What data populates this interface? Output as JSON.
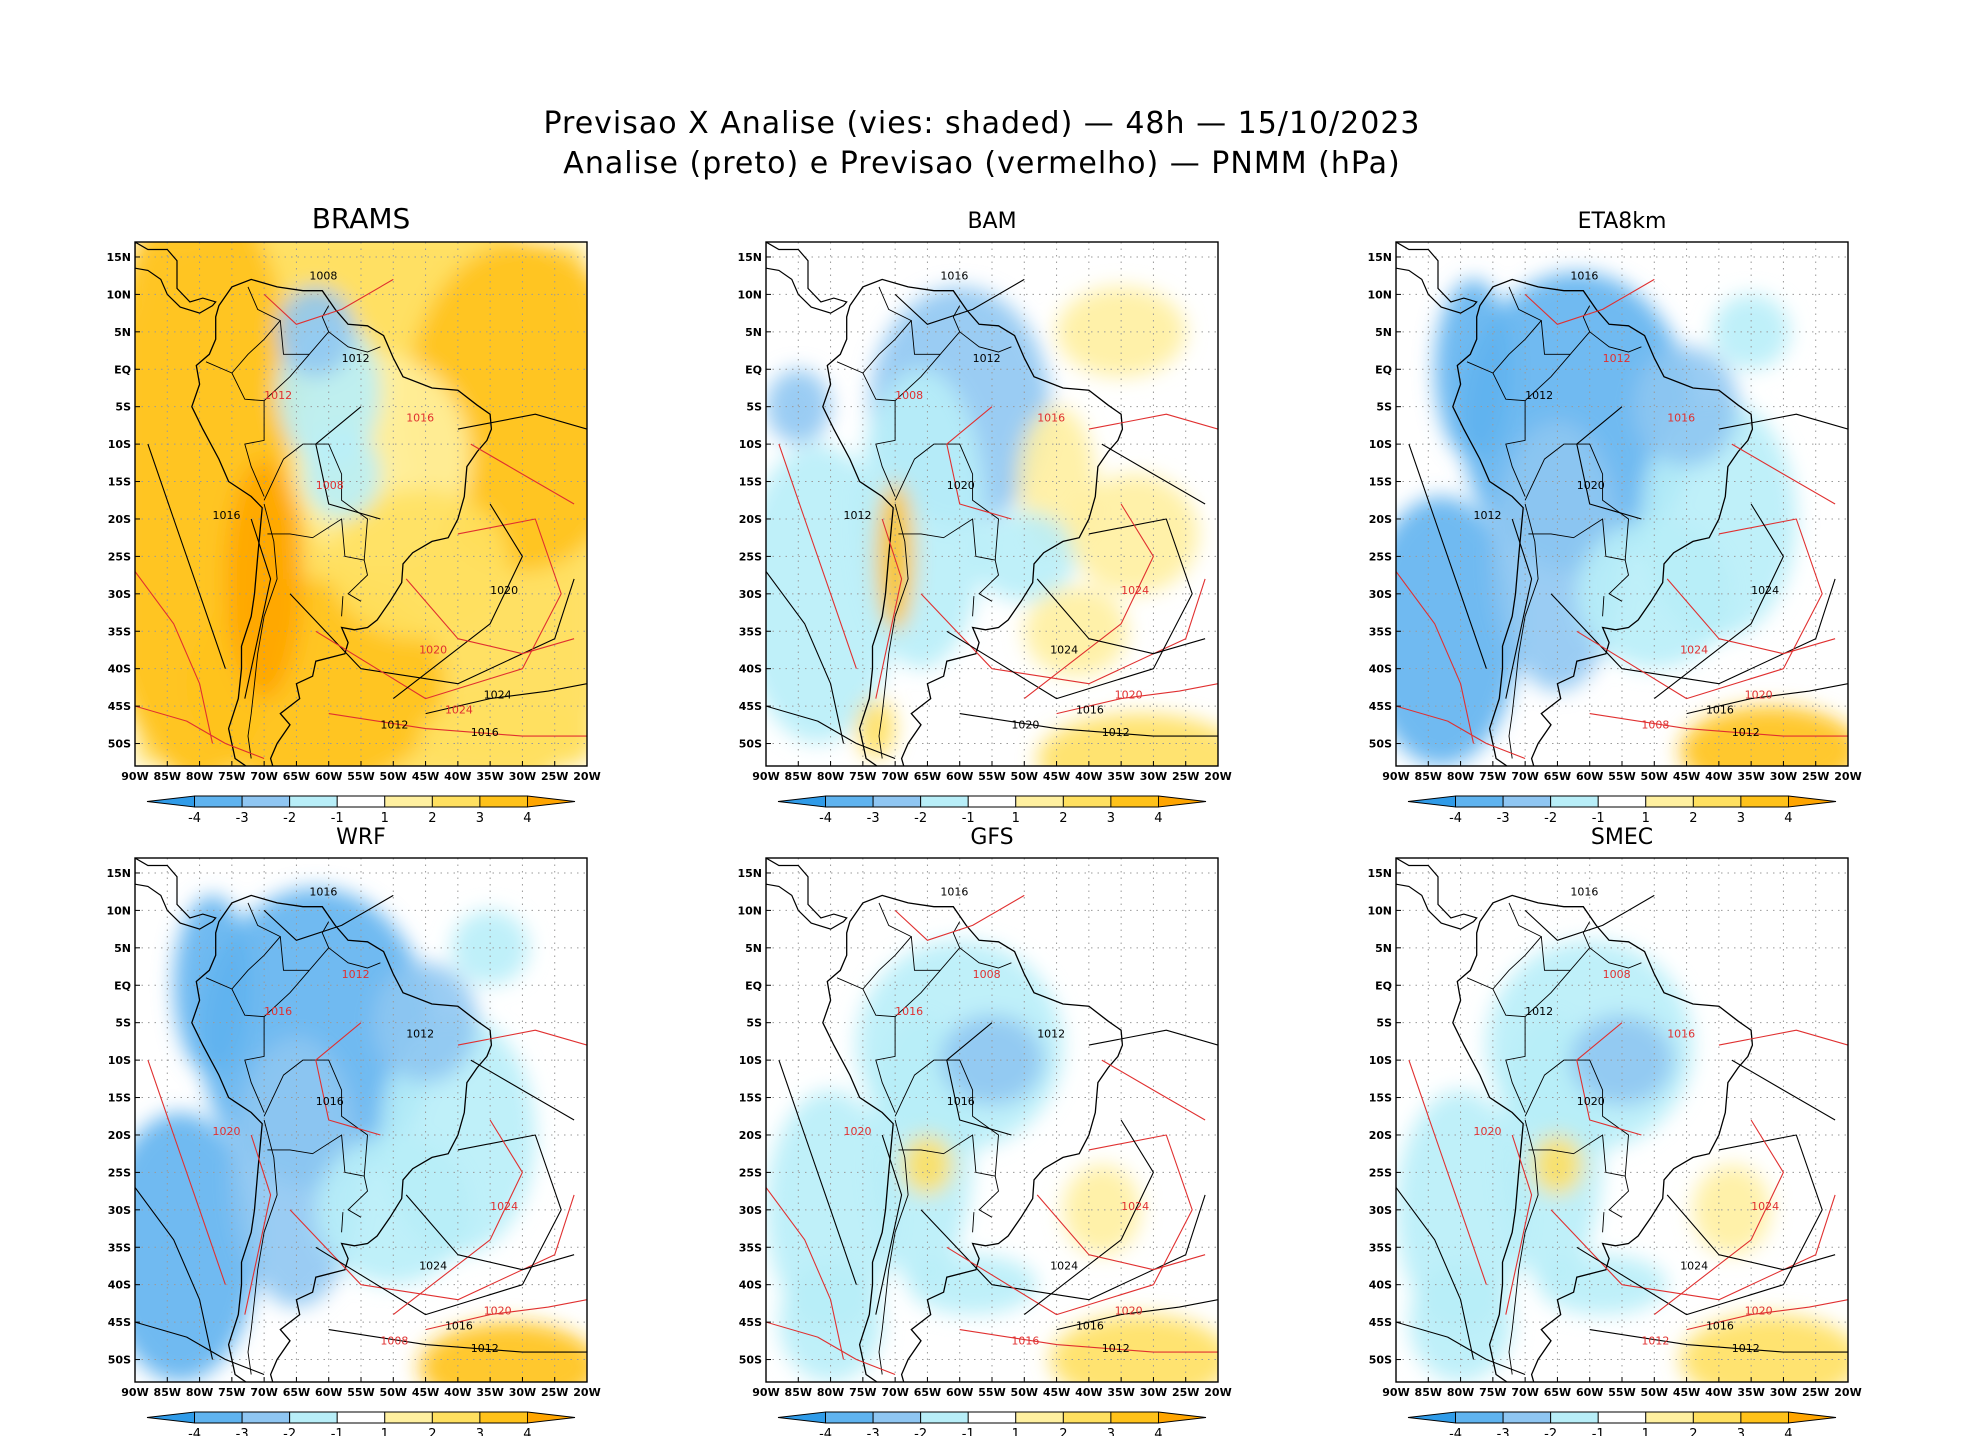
{
  "title_line1": "Previsao X Analise (vies: shaded) — 48h — 15/10/2023",
  "title_line2": "Analise (preto) e Previsao (vermelho) — PNMM (hPa)",
  "axes": {
    "lat_labels": [
      "15N",
      "10N",
      "5N",
      "EQ",
      "5S",
      "10S",
      "15S",
      "20S",
      "25S",
      "30S",
      "35S",
      "40S",
      "45S",
      "50S"
    ],
    "lon_labels": [
      "90W",
      "85W",
      "80W",
      "75W",
      "70W",
      "65W",
      "60W",
      "55W",
      "50W",
      "45W",
      "40W",
      "35W",
      "30W",
      "25W",
      "20W"
    ],
    "lat_range": [
      -53,
      17
    ],
    "lon_range": [
      -90,
      -20
    ]
  },
  "colorbar": {
    "labels": [
      "-4",
      "-3",
      "-2",
      "-1",
      "1",
      "2",
      "3",
      "4"
    ],
    "colors": [
      "#2f9be8",
      "#5fb3ef",
      "#8fc6f2",
      "#b8eef8",
      "#ffffff",
      "#fff0a0",
      "#ffe060",
      "#ffc21a",
      "#ffa500"
    ]
  },
  "colors": {
    "analysis_contour": "#000000",
    "forecast_contour": "#e03030",
    "land_outline": "#000000"
  },
  "panels": [
    {
      "name": "BRAMS",
      "bias": "warm",
      "isobars": [
        {
          "v": "1008",
          "red": false
        },
        {
          "v": "1012",
          "red": false
        },
        {
          "v": "1012",
          "red": true
        },
        {
          "v": "1016",
          "red": true
        },
        {
          "v": "1016",
          "red": false
        },
        {
          "v": "1008",
          "red": true
        },
        {
          "v": "1020",
          "red": true
        },
        {
          "v": "1020",
          "red": false
        },
        {
          "v": "1024",
          "red": false
        },
        {
          "v": "1024",
          "red": true
        },
        {
          "v": "1016",
          "red": false
        },
        {
          "v": "1012",
          "red": false
        }
      ]
    },
    {
      "name": "BAM",
      "bias": "mixed",
      "isobars": [
        {
          "v": "1016",
          "red": false
        },
        {
          "v": "1012",
          "red": false
        },
        {
          "v": "1008",
          "red": true
        },
        {
          "v": "1016",
          "red": true
        },
        {
          "v": "1012",
          "red": false
        },
        {
          "v": "1020",
          "red": false
        },
        {
          "v": "1024",
          "red": false
        },
        {
          "v": "1024",
          "red": true
        },
        {
          "v": "1020",
          "red": true
        },
        {
          "v": "1016",
          "red": false
        },
        {
          "v": "1012",
          "red": false
        },
        {
          "v": "1020",
          "red": false
        }
      ]
    },
    {
      "name": "ETA8km",
      "bias": "cold",
      "isobars": [
        {
          "v": "1016",
          "red": false
        },
        {
          "v": "1012",
          "red": true
        },
        {
          "v": "1012",
          "red": false
        },
        {
          "v": "1016",
          "red": true
        },
        {
          "v": "1012",
          "red": false
        },
        {
          "v": "1020",
          "red": false
        },
        {
          "v": "1024",
          "red": true
        },
        {
          "v": "1024",
          "red": false
        },
        {
          "v": "1020",
          "red": true
        },
        {
          "v": "1016",
          "red": false
        },
        {
          "v": "1012",
          "red": false
        },
        {
          "v": "1008",
          "red": true
        }
      ]
    },
    {
      "name": "WRF",
      "bias": "cold",
      "isobars": [
        {
          "v": "1016",
          "red": false
        },
        {
          "v": "1012",
          "red": true
        },
        {
          "v": "1016",
          "red": true
        },
        {
          "v": "1012",
          "red": false
        },
        {
          "v": "1020",
          "red": true
        },
        {
          "v": "1016",
          "red": false
        },
        {
          "v": "1024",
          "red": false
        },
        {
          "v": "1024",
          "red": true
        },
        {
          "v": "1020",
          "red": true
        },
        {
          "v": "1016",
          "red": false
        },
        {
          "v": "1012",
          "red": false
        },
        {
          "v": "1008",
          "red": true
        }
      ]
    },
    {
      "name": "GFS",
      "bias": "slight",
      "isobars": [
        {
          "v": "1016",
          "red": false
        },
        {
          "v": "1008",
          "red": true
        },
        {
          "v": "1016",
          "red": true
        },
        {
          "v": "1012",
          "red": false
        },
        {
          "v": "1020",
          "red": true
        },
        {
          "v": "1016",
          "red": false
        },
        {
          "v": "1024",
          "red": false
        },
        {
          "v": "1024",
          "red": true
        },
        {
          "v": "1020",
          "red": true
        },
        {
          "v": "1016",
          "red": false
        },
        {
          "v": "1012",
          "red": false
        },
        {
          "v": "1016",
          "red": true
        }
      ]
    },
    {
      "name": "SMEC",
      "bias": "slight",
      "isobars": [
        {
          "v": "1016",
          "red": false
        },
        {
          "v": "1008",
          "red": true
        },
        {
          "v": "1012",
          "red": false
        },
        {
          "v": "1016",
          "red": true
        },
        {
          "v": "1020",
          "red": true
        },
        {
          "v": "1020",
          "red": false
        },
        {
          "v": "1024",
          "red": false
        },
        {
          "v": "1024",
          "red": true
        },
        {
          "v": "1020",
          "red": true
        },
        {
          "v": "1016",
          "red": false
        },
        {
          "v": "1012",
          "red": false
        },
        {
          "v": "1012",
          "red": true
        }
      ]
    }
  ]
}
